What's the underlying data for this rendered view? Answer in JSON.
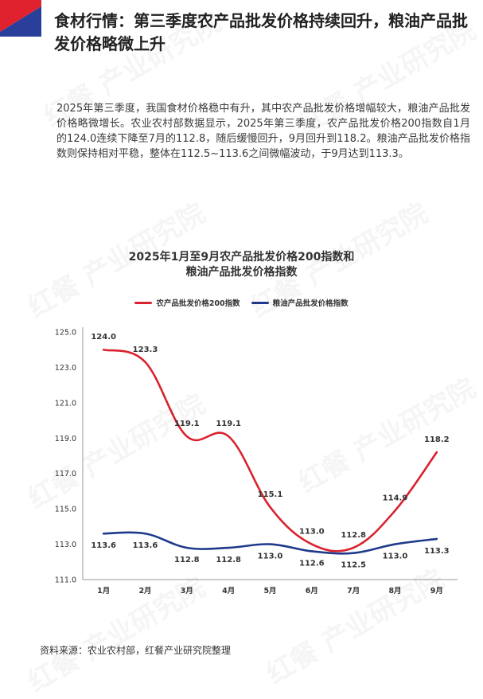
{
  "header": {
    "headline": "食材行情：第三季度农产品批发价格持续回升，粮油产品批发价格略微上升",
    "flag_colors": [
      "#e0222e",
      "#2a3f9a"
    ]
  },
  "body_text": "2025年第三季度，我国食材价格稳中有升，其中农产品批发价格增幅较大，粮油产品批发价格略微增长。农业农村部数据显示，2025年第三季度，农产品批发价格200指数自1月的124.0连续下降至7月的112.8，随后缓慢回升，9月回升到118.2。粮油产品批发价格指数则保持相对平稳，整体在112.5~113.6之间微幅波动，于9月达到113.3。",
  "chart_title_line1": "2025年1月至9月农产品批发价格200指数和",
  "chart_title_line2": "粮油产品批发价格指数",
  "watermark_text": "红餐 产业研究院",
  "source": "资料来源：农业农村部，红餐产业研究院整理",
  "chart_data": {
    "type": "line",
    "categories": [
      "1月",
      "2月",
      "3月",
      "4月",
      "5月",
      "6月",
      "7月",
      "8月",
      "9月"
    ],
    "series": [
      {
        "name": "农产品批发价格200指数",
        "color": "#d9232e",
        "values": [
          124.0,
          123.3,
          119.1,
          119.1,
          115.1,
          113.0,
          112.8,
          114.9,
          118.2
        ],
        "labels": [
          "124.0",
          "123.3",
          "119.1",
          "119.1",
          "115.1",
          "113.0",
          "112.8",
          "114.9",
          "118.2"
        ]
      },
      {
        "name": "粮油产品批发价格指数",
        "color": "#1f3a8a",
        "values": [
          113.6,
          113.6,
          112.8,
          112.8,
          113.0,
          112.6,
          112.5,
          113.0,
          113.3
        ],
        "labels": [
          "113.6",
          "113.6",
          "112.8",
          "112.8",
          "113.0",
          "112.6",
          "112.5",
          "113.0",
          "113.3"
        ]
      }
    ],
    "yticks": [
      "111.0",
      "113.0",
      "115.0",
      "117.0",
      "119.0",
      "121.0",
      "123.0",
      "125.0"
    ],
    "ylim": [
      111,
      125
    ],
    "legend_position": "top-center",
    "grid": false
  }
}
